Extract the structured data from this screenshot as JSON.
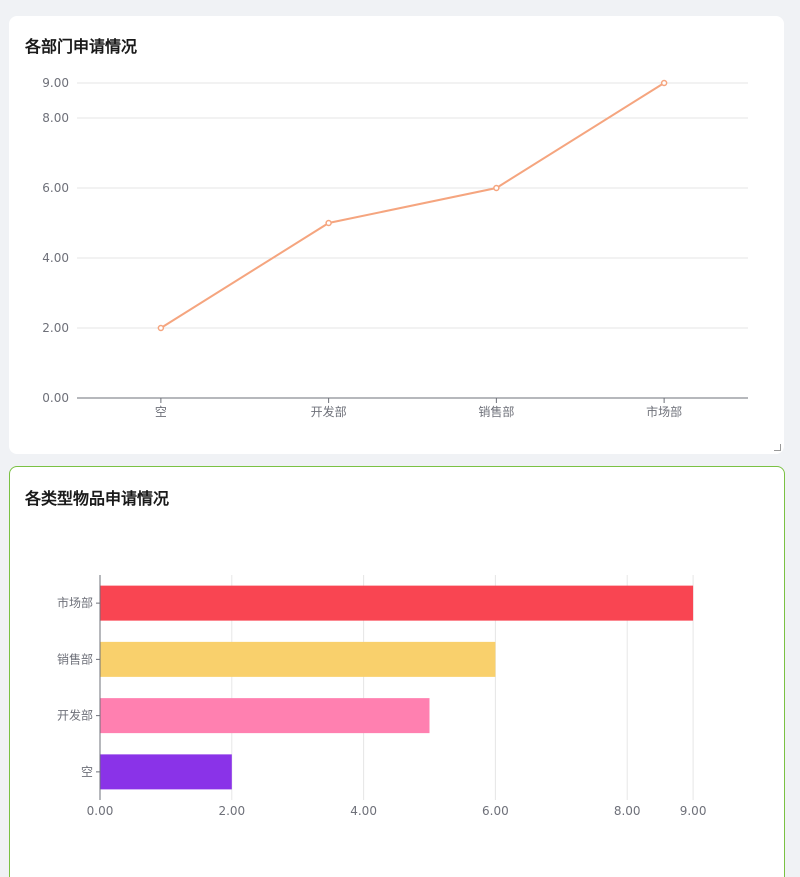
{
  "colors": {
    "line": "#f5a57f",
    "grid": "#e6e6e6",
    "axis": "#6e7079",
    "card_border_active": "#7ac143"
  },
  "chart_data": [
    {
      "type": "line",
      "title": "各部门申请情况",
      "categories": [
        "空",
        "开发部",
        "销售部",
        "市场部"
      ],
      "values": [
        2,
        5,
        6,
        9
      ],
      "y_ticks": [
        "0.00",
        "2.00",
        "4.00",
        "6.00",
        "8.00",
        "9.00"
      ],
      "ylim": [
        0,
        9
      ],
      "grid": true,
      "color": "#f5a57f"
    },
    {
      "type": "bar",
      "orientation": "horizontal",
      "title": "各类型物品申请情况",
      "categories": [
        "空",
        "开发部",
        "销售部",
        "市场部"
      ],
      "values": [
        2,
        5,
        6,
        9
      ],
      "bar_colors": [
        "#8a33e8",
        "#ff80b0",
        "#f9d06c",
        "#f94552"
      ],
      "x_ticks": [
        "0.00",
        "2.00",
        "4.00",
        "6.00",
        "8.00",
        "9.00"
      ],
      "xlim": [
        0,
        9
      ],
      "grid": true
    }
  ]
}
